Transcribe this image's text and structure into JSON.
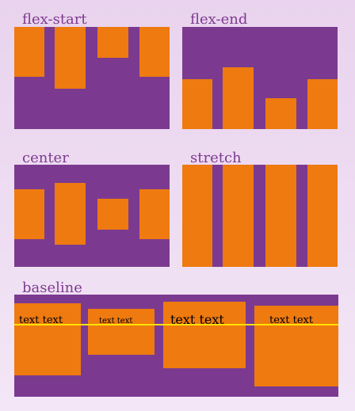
{
  "labels": {
    "flex_start": "flex-start",
    "flex_end": "flex-end",
    "center": "center",
    "stretch": "stretch",
    "baseline": "baseline"
  },
  "baseline_items": [
    "text text",
    "text text",
    "text text",
    "text text"
  ],
  "colors": {
    "background_top": "#e9d3ee",
    "background_bottom": "#f3e6f6",
    "label_text": "#7d3b8f",
    "container": "#7b3a90",
    "item": "#ee7a10",
    "baseline_line": "#ffe200"
  }
}
